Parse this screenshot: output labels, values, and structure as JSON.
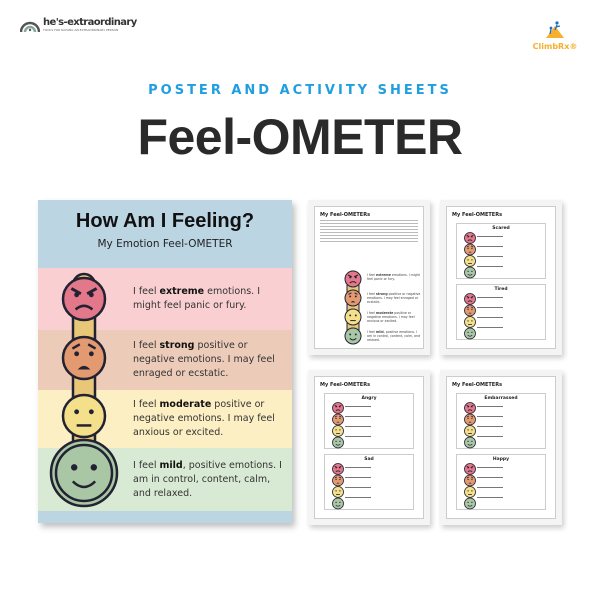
{
  "brand_left": {
    "name": "he's-extraordinary",
    "tagline": "TOOLS FOR RAISING AN EXTRAORDINARY PERSON"
  },
  "brand_right": {
    "name": "ClimbRx®"
  },
  "subtitle": "POSTER AND ACTIVITY SHEETS",
  "title": "Feel-OMETER",
  "poster": {
    "title": "How Am I Feeling?",
    "subtitle": "My Emotion Feel-OMETER",
    "levels": [
      {
        "pre": "I feel ",
        "bold": "extreme",
        "post": " emotions. I might feel panic or fury.",
        "face": "angry",
        "color": "#e2788a",
        "band": "#f9cfd2"
      },
      {
        "pre": "I feel ",
        "bold": "strong",
        "post": " positive or negative emotions. I may feel enraged or ecstatic.",
        "face": "worried",
        "color": "#e39a70",
        "band": "#ecccb9"
      },
      {
        "pre": "I feel ",
        "bold": "moderate",
        "post": " positive or negative emotions. I may feel anxious or excited.",
        "face": "neutral",
        "color": "#f4e08a",
        "band": "#fcefc3"
      },
      {
        "pre": "I feel ",
        "bold": "mild",
        "post": ", positive emotions. I am in control, content, calm, and relaxed.",
        "face": "smile",
        "color": "#a9c7a4",
        "band": "#d9ead4"
      }
    ]
  },
  "sheets": [
    {
      "title": "My Feel-OMETERs",
      "boxes": []
    },
    {
      "title": "My Feel-OMETERs",
      "boxes": [
        "Scared",
        "Tired"
      ]
    },
    {
      "title": "My Feel-OMETERs",
      "boxes": [
        "Angry",
        "Sad"
      ]
    },
    {
      "title": "My Feel-OMETERs",
      "boxes": [
        "Embarrassed",
        "Happy"
      ]
    }
  ]
}
